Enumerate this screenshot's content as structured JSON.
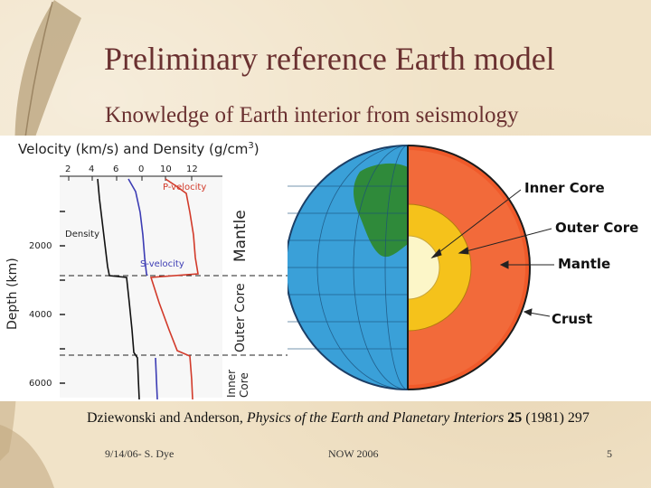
{
  "slide": {
    "title": "Preliminary reference Earth model",
    "subtitle": "Knowledge of Earth interior from seismology"
  },
  "prem_chart": {
    "header": "Velocity (km/s) and Density (g/cm",
    "header_sup": "3",
    "header_close": ")",
    "top_ticks": [
      "2",
      "4",
      "6",
      "0",
      "10",
      "12"
    ],
    "depth_ticks": [
      "2000",
      "4000",
      "6000"
    ],
    "y_axis_label": "Depth (km)",
    "curve_labels": {
      "p_velocity": "P-velocity",
      "s_velocity": "S-velocity",
      "density": "Density"
    },
    "layer_labels": {
      "mantle": "Mantle",
      "outer_core": "Outer Core",
      "inner_core_line1": "Inner",
      "inner_core_line2": "Core"
    },
    "colors": {
      "p_velocity": "#d23a2a",
      "s_velocity": "#3c3cb4",
      "density": "#111111"
    }
  },
  "earth_diagram": {
    "labels": {
      "inner_core": "Inner Core",
      "outer_core": "Outer Core",
      "mantle": "Mantle",
      "crust": "Crust"
    },
    "colors": {
      "ocean": "#3aa0d8",
      "land": "#2f8a3a",
      "crust": "#f05a2a",
      "mantle": "#f26a3a",
      "outer_core": "#f5c21b",
      "inner_core": "#fcf6c8"
    }
  },
  "citation": {
    "authors": "Dziewonski and Anderson,",
    "journal": "Physics of the Earth and Planetary Interiors",
    "volume": "25",
    "year_pages": "(1981) 297"
  },
  "footer": {
    "left": "9/14/06- S. Dye",
    "center": "NOW 2006",
    "page": "5"
  }
}
